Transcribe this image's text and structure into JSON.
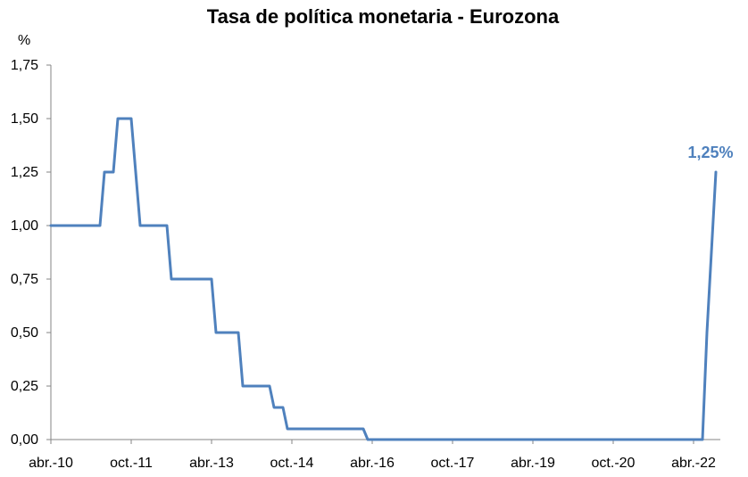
{
  "chart_data": {
    "type": "line",
    "title": "Tasa de política monetaria - Eurozona",
    "ylabel": "%",
    "xlabel": "",
    "ylim": [
      0,
      1.75
    ],
    "y_ticks": [
      "0,00",
      "0,25",
      "0,50",
      "0,75",
      "1,00",
      "1,25",
      "1,50",
      "1,75"
    ],
    "y_tick_values": [
      0,
      0.25,
      0.5,
      0.75,
      1.0,
      1.25,
      1.5,
      1.75
    ],
    "x_ticks": [
      "abr.-10",
      "oct.-11",
      "abr.-13",
      "oct.-14",
      "abr.-16",
      "oct.-17",
      "abr.-19",
      "oct.-20",
      "abr.-22"
    ],
    "grid": false,
    "legend": "none",
    "series": [
      {
        "color": "#4F81BD",
        "points": [
          {
            "x": "2010-04",
            "y": 1.0
          },
          {
            "x": "2011-03",
            "y": 1.0
          },
          {
            "x": "2011-04",
            "y": 1.25
          },
          {
            "x": "2011-06",
            "y": 1.25
          },
          {
            "x": "2011-07",
            "y": 1.5
          },
          {
            "x": "2011-10",
            "y": 1.5
          },
          {
            "x": "2011-11",
            "y": 1.25
          },
          {
            "x": "2011-12",
            "y": 1.0
          },
          {
            "x": "2012-06",
            "y": 1.0
          },
          {
            "x": "2012-07",
            "y": 0.75
          },
          {
            "x": "2013-04",
            "y": 0.75
          },
          {
            "x": "2013-05",
            "y": 0.5
          },
          {
            "x": "2013-10",
            "y": 0.5
          },
          {
            "x": "2013-11",
            "y": 0.25
          },
          {
            "x": "2014-05",
            "y": 0.25
          },
          {
            "x": "2014-06",
            "y": 0.15
          },
          {
            "x": "2014-08",
            "y": 0.15
          },
          {
            "x": "2014-09",
            "y": 0.05
          },
          {
            "x": "2016-02",
            "y": 0.05
          },
          {
            "x": "2016-03",
            "y": 0.0
          },
          {
            "x": "2022-06",
            "y": 0.0
          },
          {
            "x": "2022-07",
            "y": 0.5
          },
          {
            "x": "2022-09",
            "y": 1.25
          }
        ]
      }
    ],
    "annotations": [
      {
        "text": "1,25%",
        "x": "2022-09",
        "y": 1.25,
        "color": "#4F81BD"
      }
    ]
  }
}
